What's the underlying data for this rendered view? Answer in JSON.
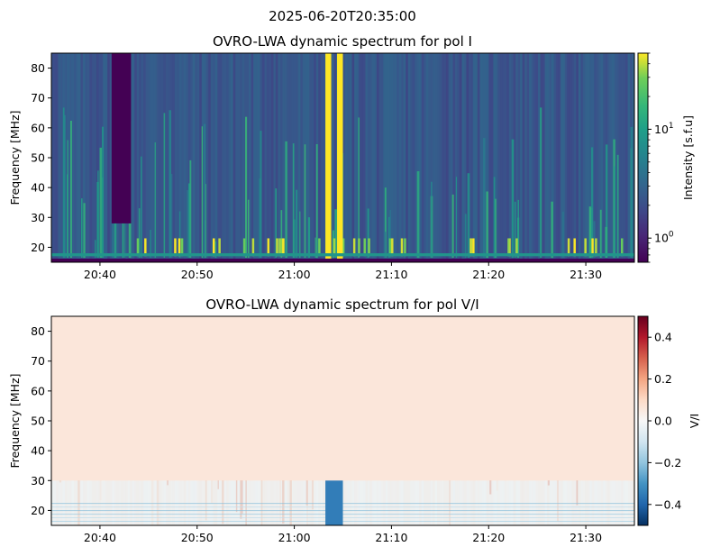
{
  "suptitle": "2025-06-20T20:35:00",
  "chart_data": [
    {
      "type": "heatmap",
      "title": "OVRO-LWA dynamic spectrum for pol I",
      "xlabel": "",
      "ylabel": "Frequency [MHz]",
      "x_ticks": [
        "20:40",
        "20:50",
        "21:00",
        "21:10",
        "21:20",
        "21:30"
      ],
      "x_tick_minutes": [
        5,
        15,
        25,
        35,
        45,
        55
      ],
      "xlim_minutes": [
        0,
        60
      ],
      "xlim": [
        "20:35",
        "21:35"
      ],
      "y_ticks": [
        20,
        30,
        40,
        50,
        60,
        70,
        80
      ],
      "ylim": [
        15,
        85
      ],
      "colormap": "viridis",
      "color_scale": "log",
      "colorbar": {
        "label": "Intensity [s.f.u]",
        "range": [
          0.6,
          50
        ],
        "major_ticks": [
          {
            "value": 1,
            "base": "10",
            "exp": "0"
          },
          {
            "value": 10,
            "base": "10",
            "exp": "1"
          }
        ],
        "minor_ticks": [
          0.6,
          0.7,
          0.8,
          0.9,
          2,
          3,
          4,
          5,
          6,
          7,
          8,
          9,
          20,
          30,
          40,
          50
        ]
      },
      "features": [
        {
          "name": "data gap",
          "time_minutes": [
            6.2,
            8.2
          ],
          "freq_mhz": [
            28,
            85
          ],
          "level": 0.6
        },
        {
          "name": "strong broadband burst",
          "time_minutes": [
            28.2,
            28.8
          ],
          "freq_mhz": [
            15,
            85
          ],
          "level": 50
        },
        {
          "name": "strong broadband burst",
          "time_minutes": [
            29.4,
            30.0
          ],
          "freq_mhz": [
            15,
            85
          ],
          "level": 50
        },
        {
          "name": "bright band",
          "time_minutes": [
            0,
            60
          ],
          "freq_mhz": [
            17,
            18
          ],
          "level": 8
        },
        {
          "name": "blank band",
          "time_minutes": [
            0,
            60
          ],
          "freq_mhz": [
            15,
            16.2
          ],
          "level": 0.6
        }
      ],
      "grid": false
    },
    {
      "type": "heatmap",
      "title": "OVRO-LWA dynamic spectrum for pol V/I",
      "xlabel": "",
      "ylabel": "Frequency [MHz]",
      "x_ticks": [
        "20:40",
        "20:50",
        "21:00",
        "21:10",
        "21:20",
        "21:30"
      ],
      "x_tick_minutes": [
        5,
        15,
        25,
        35,
        45,
        55
      ],
      "xlim_minutes": [
        0,
        60
      ],
      "xlim": [
        "20:35",
        "21:35"
      ],
      "y_ticks": [
        20,
        30,
        40,
        50,
        60,
        70,
        80
      ],
      "ylim": [
        15,
        85
      ],
      "colormap": "RdBu_r",
      "color_scale": "linear",
      "colorbar": {
        "label": "V/I",
        "range": [
          -0.5,
          0.5
        ],
        "ticks": [
          0.4,
          0.2,
          0.0,
          -0.2,
          -0.4
        ],
        "tick_labels": [
          "0.4",
          "0.2",
          "0.0",
          "−0.2",
          "−0.4"
        ]
      },
      "features": [
        {
          "name": "negative polarization burst",
          "time_minutes": [
            28.2,
            30.0
          ],
          "freq_mhz": [
            15,
            85
          ],
          "level": -0.35
        },
        {
          "name": "weakly positive background",
          "time_minutes": [
            0,
            60
          ],
          "freq_mhz": [
            30,
            85
          ],
          "level": 0.06
        }
      ],
      "grid": false
    }
  ]
}
